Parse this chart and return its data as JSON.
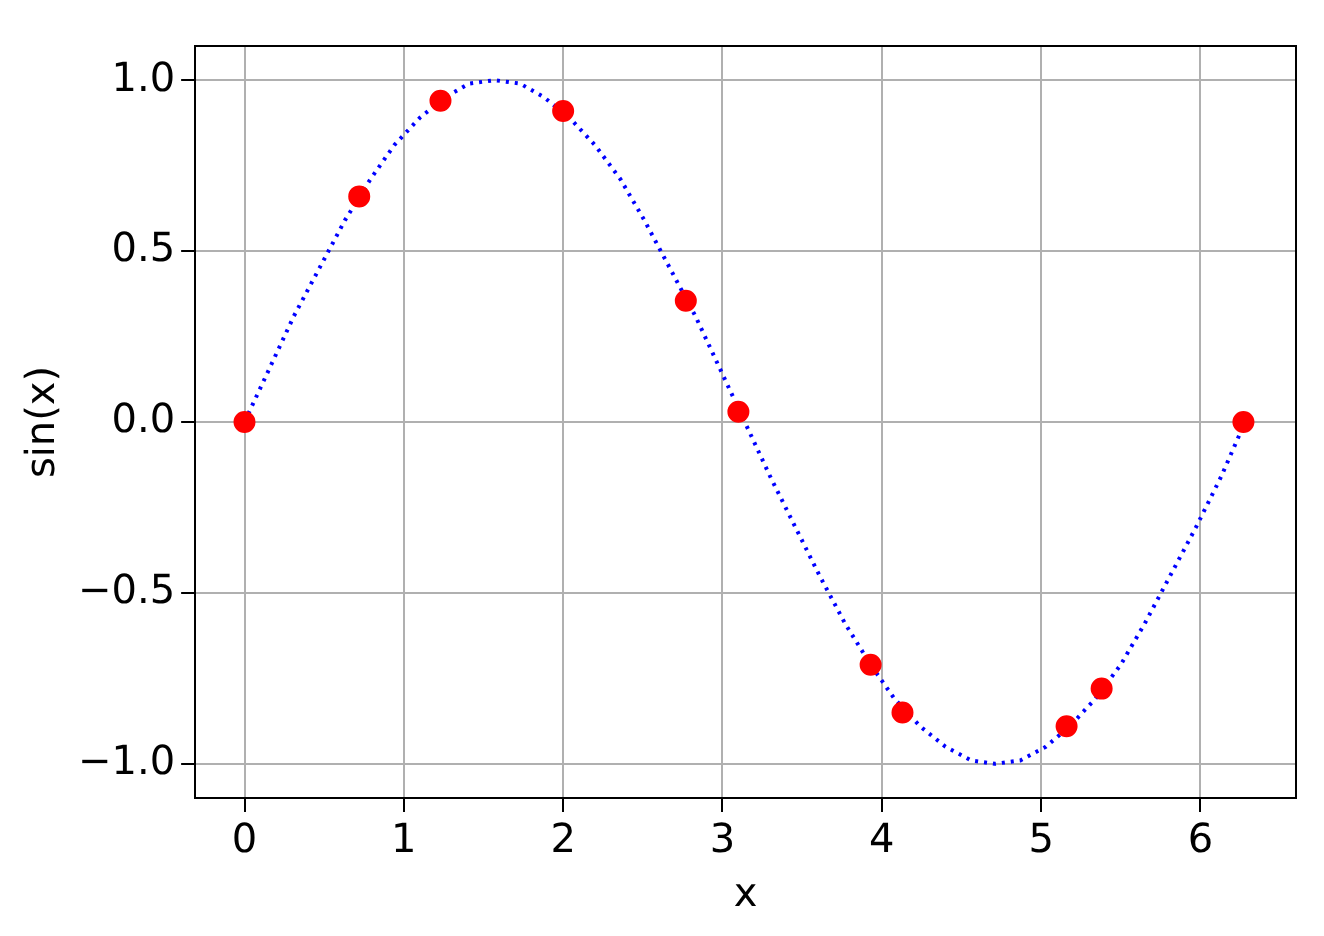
{
  "chart_data": {
    "type": "scatter",
    "xlabel": "x",
    "ylabel": "sin(x)",
    "xlim": [
      -0.31,
      6.6
    ],
    "ylim": [
      -1.1,
      1.1
    ],
    "xticks": [
      0,
      1,
      2,
      3,
      4,
      5,
      6
    ],
    "yticks": [
      {
        "value": -1,
        "label": "−1.0"
      },
      {
        "value": -0.5,
        "label": "−0.5"
      },
      {
        "value": 0,
        "label": "0.0"
      },
      {
        "value": 0.5,
        "label": "0.5"
      },
      {
        "value": 1,
        "label": "1.0"
      }
    ],
    "grid": true,
    "legend": false,
    "series": [
      {
        "type": "line",
        "color": "#0000ff",
        "line_style": "dotted",
        "marker": "none",
        "x": [
          0,
          0.16,
          0.31,
          0.47,
          0.63,
          0.79,
          0.94,
          1.1,
          1.26,
          1.41,
          1.57,
          1.73,
          1.88,
          2.04,
          2.2,
          2.36,
          2.51,
          2.67,
          2.83,
          2.98,
          3.14,
          3.3,
          3.46,
          3.61,
          3.77,
          3.93,
          4.08,
          4.24,
          4.4,
          4.56,
          4.71,
          4.87,
          5.03,
          5.18,
          5.34,
          5.5,
          5.65,
          5.81,
          5.97,
          6.13,
          6.28
        ],
        "values": [
          0,
          0.16,
          0.31,
          0.45,
          0.59,
          0.71,
          0.81,
          0.89,
          0.95,
          0.99,
          1,
          0.99,
          0.95,
          0.89,
          0.81,
          0.71,
          0.59,
          0.45,
          0.31,
          0.16,
          0,
          -0.16,
          -0.31,
          -0.45,
          -0.59,
          -0.71,
          -0.81,
          -0.89,
          -0.95,
          -0.99,
          -1,
          -0.99,
          -0.95,
          -0.89,
          -0.81,
          -0.71,
          -0.59,
          -0.45,
          -0.31,
          -0.16,
          0
        ]
      },
      {
        "color": "#ff0000",
        "marker": "circle",
        "x": [
          0,
          0.72,
          1.23,
          2.0,
          2.77,
          3.1,
          3.93,
          4.13,
          5.16,
          5.38,
          6.27
        ],
        "values": [
          0,
          0.66,
          0.94,
          0.91,
          0.355,
          0.03,
          -0.71,
          -0.85,
          -0.89,
          -0.78,
          0
        ]
      }
    ]
  }
}
